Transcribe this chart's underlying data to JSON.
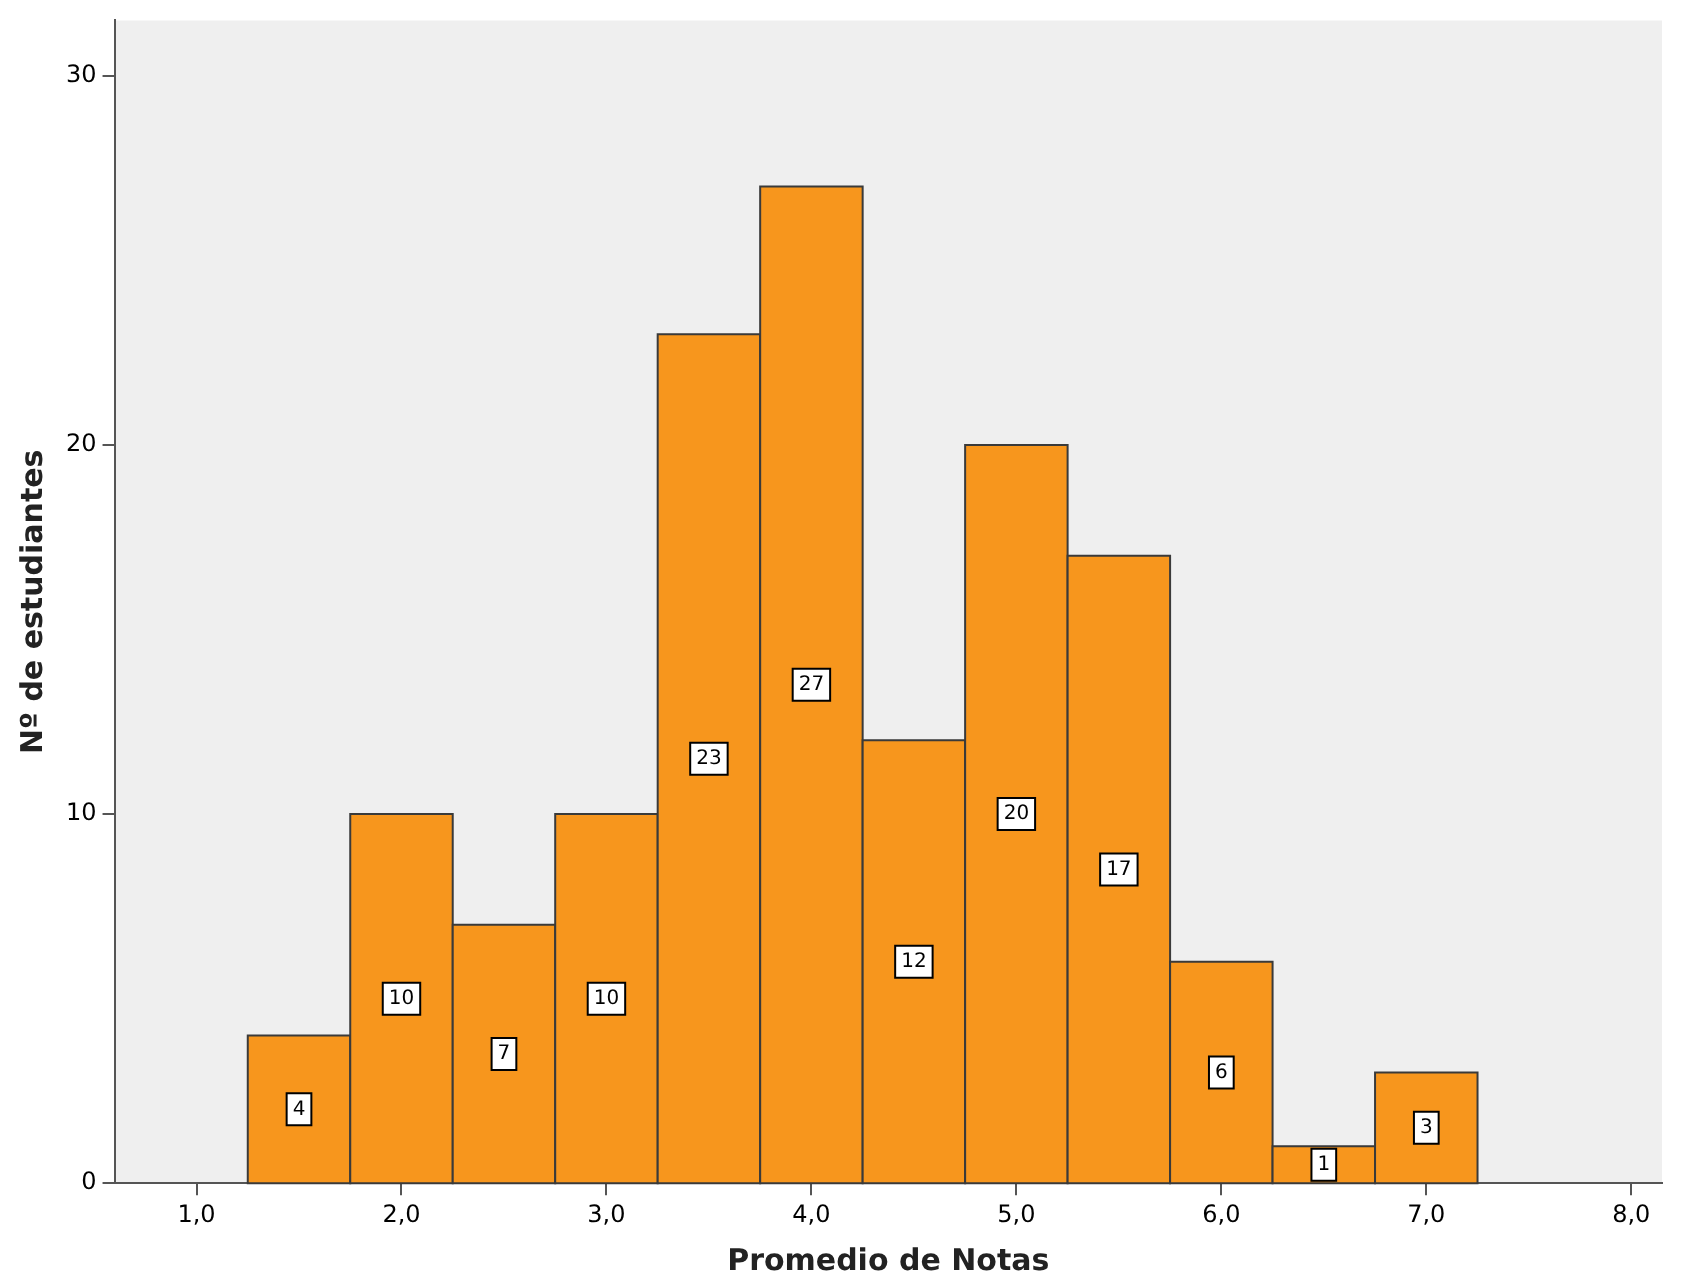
{
  "chart_data": {
    "type": "histogram",
    "xlabel": "Promedio de Notas",
    "ylabel": "Nº de estudiantes",
    "bins": [
      1.25,
      1.75,
      2.25,
      2.75,
      3.25,
      3.75,
      4.25,
      4.75,
      5.25,
      5.75,
      6.25,
      6.75,
      7.25
    ],
    "values": [
      4,
      10,
      7,
      10,
      23,
      27,
      12,
      20,
      17,
      6,
      1,
      3
    ],
    "color": "#f7961d",
    "data_labels": true,
    "grid": false,
    "legend": false,
    "xlim": [
      0.6,
      8.15
    ],
    "xticks": [
      {
        "value": 1,
        "label": "1,0"
      },
      {
        "value": 2,
        "label": "2,0"
      },
      {
        "value": 3,
        "label": "3,0"
      },
      {
        "value": 4,
        "label": "4,0"
      },
      {
        "value": 5,
        "label": "5,0"
      },
      {
        "value": 6,
        "label": "6,0"
      },
      {
        "value": 7,
        "label": "7,0"
      },
      {
        "value": 8,
        "label": "8,0"
      }
    ],
    "ylim": [
      0,
      31.5
    ],
    "yticks": [
      0,
      10,
      20,
      30
    ]
  }
}
